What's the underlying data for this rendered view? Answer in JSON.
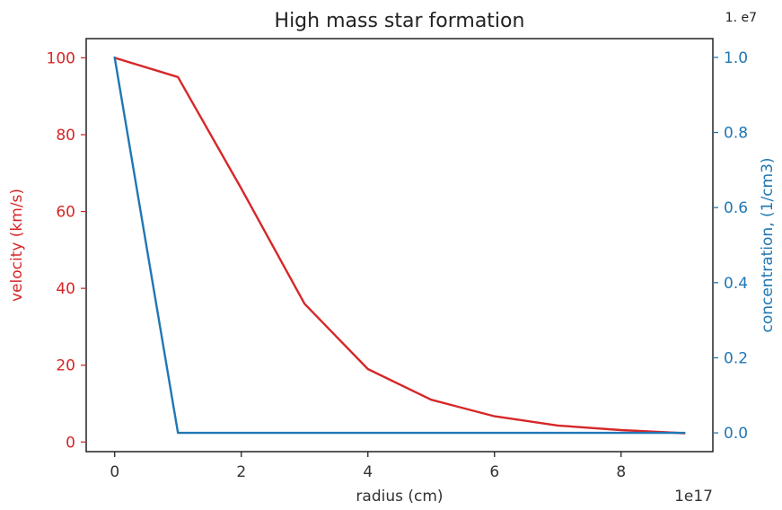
{
  "chart_data": {
    "type": "line",
    "title": "High mass star formation",
    "xlabel": "radius (cm)",
    "x_offset_label": "1e17",
    "xlim": [
      -0.45,
      9.45
    ],
    "x_ticks": [
      0,
      2,
      4,
      6,
      8
    ],
    "x_tick_labels": [
      "0",
      "2",
      "4",
      "6",
      "8"
    ],
    "y_left": {
      "label": "velocity (km/s)",
      "color": "#d62728",
      "ylim": [
        -2.5,
        105
      ],
      "ticks": [
        0,
        20,
        40,
        60,
        80,
        100
      ],
      "tick_labels": [
        "0",
        "20",
        "40",
        "60",
        "80",
        "100"
      ]
    },
    "y_right": {
      "label": "concentration, (1/cm3)",
      "color": "#1f77b4",
      "offset_label": "1. e7",
      "ylim": [
        -0.05,
        1.05
      ],
      "ticks": [
        0.0,
        0.2,
        0.4,
        0.6,
        0.8,
        1.0
      ],
      "tick_labels": [
        "0.0",
        "0.2",
        "0.4",
        "0.6",
        "0.8",
        "1.0"
      ]
    },
    "series": [
      {
        "axis": "left",
        "color": "#d62728",
        "x": [
          0,
          1,
          2,
          3,
          4,
          5,
          6,
          7,
          8,
          9
        ],
        "y": [
          100,
          95,
          66,
          36,
          19,
          11,
          6.7,
          4.3,
          3.1,
          2.3
        ]
      },
      {
        "axis": "right",
        "color": "#1f77b4",
        "x": [
          0,
          1,
          2,
          3,
          4,
          5,
          6,
          7,
          8,
          9
        ],
        "y": [
          1.0,
          0.0,
          0.0,
          0.0,
          0.0,
          0.0,
          0.0,
          0.0,
          0.0,
          0.0
        ]
      }
    ]
  }
}
